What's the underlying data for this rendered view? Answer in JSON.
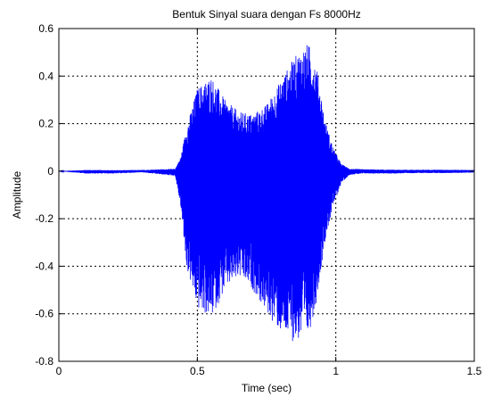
{
  "chart_data": {
    "type": "line",
    "title": "Bentuk Sinyal suara dengan Fs 8000Hz",
    "xlabel": "Time (sec)",
    "ylabel": "Amplitude",
    "xlim": [
      0,
      1.5
    ],
    "ylim": [
      -0.8,
      0.6
    ],
    "xticks": [
      0,
      0.5,
      1,
      1.5
    ],
    "xtick_labels": [
      "0",
      "0.5",
      "1",
      "1.5"
    ],
    "yticks": [
      -0.8,
      -0.6,
      -0.4,
      -0.2,
      0,
      0.2,
      0.4,
      0.6
    ],
    "ytick_labels": [
      "-0.8",
      "-0.6",
      "-0.4",
      "-0.2",
      "0",
      "0.2",
      "0.4",
      "0.6"
    ],
    "grid": true,
    "grid_style": "dotted",
    "sampling_rate_hz": 8000,
    "line_color": "#0000ff",
    "series": [
      {
        "envelope_time": [
          0.0,
          0.1,
          0.2,
          0.3,
          0.42,
          0.44,
          0.46,
          0.5,
          0.55,
          0.6,
          0.65,
          0.7,
          0.75,
          0.8,
          0.85,
          0.9,
          0.93,
          0.96,
          0.99,
          1.02,
          1.05,
          1.1,
          1.2,
          1.3,
          1.4,
          1.5
        ],
        "envelope_max": [
          0.0,
          0.005,
          0.004,
          0.005,
          0.01,
          0.06,
          0.18,
          0.35,
          0.4,
          0.3,
          0.25,
          0.24,
          0.28,
          0.38,
          0.48,
          0.54,
          0.45,
          0.22,
          0.1,
          0.03,
          0.01,
          0.008,
          0.006,
          0.006,
          0.006,
          0.005
        ],
        "envelope_min": [
          0.0,
          -0.01,
          -0.01,
          -0.005,
          -0.02,
          -0.15,
          -0.4,
          -0.58,
          -0.62,
          -0.5,
          -0.45,
          -0.5,
          -0.6,
          -0.68,
          -0.72,
          -0.7,
          -0.55,
          -0.3,
          -0.15,
          -0.05,
          -0.015,
          -0.01,
          -0.01,
          -0.008,
          -0.008,
          -0.006
        ]
      }
    ]
  }
}
